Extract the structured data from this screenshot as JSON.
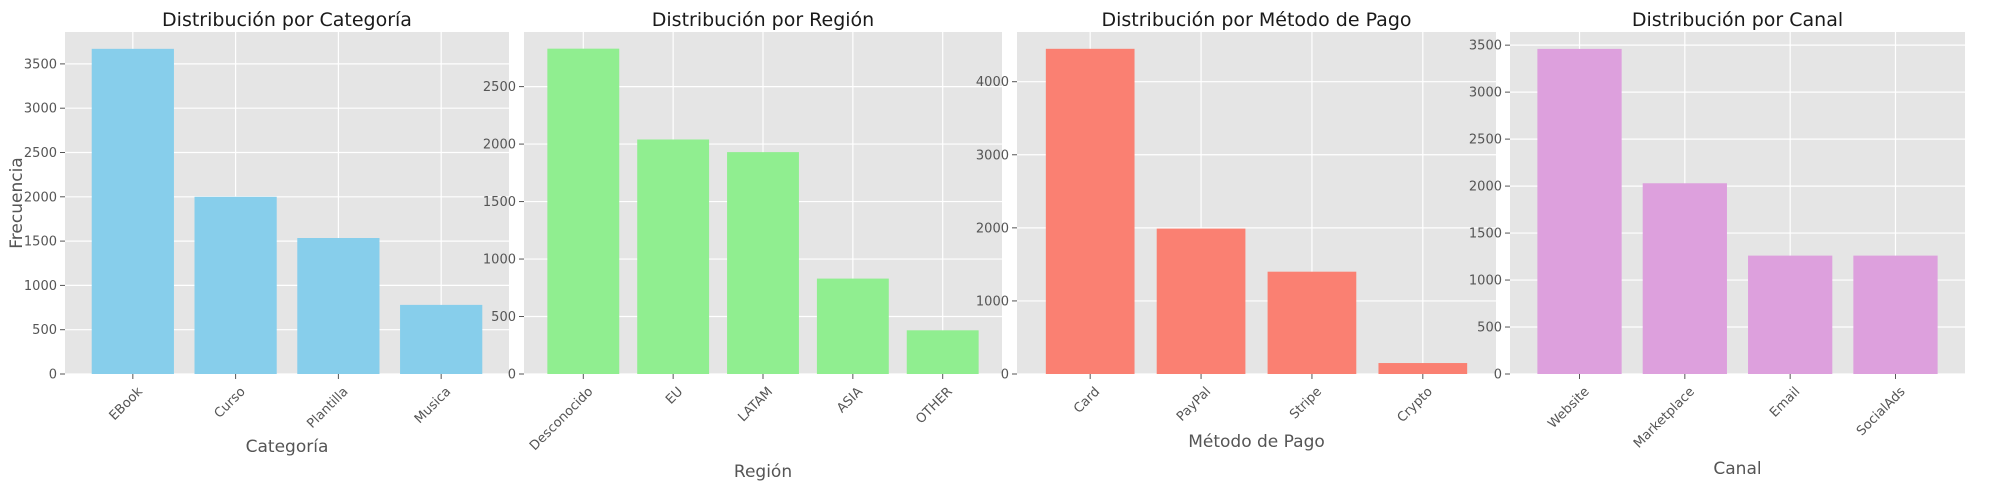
{
  "chart_data": [
    {
      "type": "bar",
      "title": "Distribución por Categoría",
      "xlabel": "Categoría",
      "ylabel": "Frecuencia",
      "categories": [
        "EBook",
        "Curso",
        "Plantilla",
        "Musica"
      ],
      "values": [
        3670,
        2000,
        1535,
        780
      ],
      "ylim": [
        0,
        3860
      ],
      "yticks": [
        0,
        500,
        1000,
        1500,
        2000,
        2500,
        3000,
        3500
      ],
      "color": "#87ceeb",
      "grid": true
    },
    {
      "type": "bar",
      "title": "Distribución por Región",
      "xlabel": "Región",
      "ylabel": "",
      "categories": [
        "Desconocido",
        "EU",
        "LATAM",
        "ASIA",
        "OTHER"
      ],
      "values": [
        2830,
        2040,
        1930,
        830,
        380
      ],
      "ylim": [
        0,
        2975
      ],
      "yticks": [
        0,
        500,
        1000,
        1500,
        2000,
        2500
      ],
      "color": "#90ee90",
      "grid": true
    },
    {
      "type": "bar",
      "title": "Distribución por Método de Pago",
      "xlabel": "Método de Pago",
      "ylabel": "",
      "categories": [
        "Card",
        "PayPal",
        "Stripe",
        "Crypto"
      ],
      "values": [
        4450,
        1990,
        1400,
        150
      ],
      "ylim": [
        0,
        4680
      ],
      "yticks": [
        0,
        1000,
        2000,
        3000,
        4000
      ],
      "color": "#fa8072",
      "grid": true
    },
    {
      "type": "bar",
      "title": "Distribución por Canal",
      "xlabel": "Canal",
      "ylabel": "",
      "categories": [
        "Website",
        "Marketplace",
        "Email",
        "SocialAds"
      ],
      "values": [
        3460,
        2030,
        1260,
        1260
      ],
      "ylim": [
        0,
        3640
      ],
      "yticks": [
        0,
        500,
        1000,
        1500,
        2000,
        2500,
        3000,
        3500
      ],
      "color": "#dda0dd",
      "grid": true
    }
  ]
}
